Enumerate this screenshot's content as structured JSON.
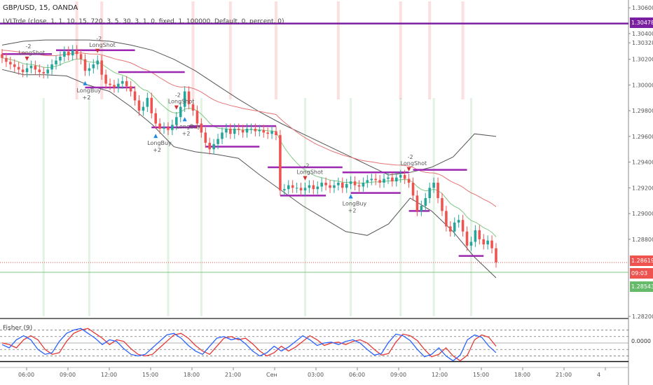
{
  "header": {
    "symbol_line": "GBP/USD, 15, OANDA",
    "study_line": "LVLTrde (close, 1, 1, 10, 15, 720, 3, 5, 30, 3, 1, 0, fixed, 1, 100000, Default, 0, percent, 0)",
    "fisher_label": "Fisher (9)"
  },
  "price_tags": {
    "top_level": "1.30478",
    "last_price": "1.28619",
    "countdown": "09:03",
    "support": "1.28543",
    "fisher_zero": "0.0000"
  },
  "colors": {
    "bull": "#26a69a",
    "bear": "#ef5350",
    "purple_level": "#9c27b0",
    "top_line": "#7b1fa2",
    "band_outer": "#555555",
    "ema_red": "#e57373",
    "ema_green": "#81c784",
    "fisher_blue": "#2962ff",
    "fisher_red": "#e53935",
    "support_tag": "#66bb6a",
    "price_tag": "#ef5350"
  },
  "chart_data": [
    {
      "type": "line",
      "title": "GBP/USD, 15, OANDA",
      "ylim": [
        1.282,
        1.3065
      ],
      "y_ticks": [
        "1.30600",
        "1.30400",
        "1.30328",
        "1.30200",
        "1.30000",
        "1.29800",
        "1.29600",
        "1.29400",
        "1.29200",
        "1.29000",
        "1.28800",
        "1.28200"
      ],
      "x_ticks": [
        "06:00",
        "09:00",
        "12:00",
        "15:00",
        "18:00",
        "21:00",
        "Сен",
        "03:00",
        "06:00",
        "09:00",
        "12:00",
        "15:00",
        "18:00",
        "21:00",
        "4"
      ],
      "series": [
        {
          "name": "close",
          "values": [
            1.3021,
            1.3018,
            1.3016,
            1.3014,
            1.3012,
            1.301,
            1.3013,
            1.3015,
            1.3012,
            1.301,
            1.3009,
            1.3012,
            1.3016,
            1.3019,
            1.3022,
            1.3026,
            1.3023,
            1.3027,
            1.3024,
            1.302,
            1.3011,
            1.3013,
            1.3016,
            1.3019,
            1.3008,
            1.3001,
            1.3,
            1.2998,
            1.3001,
            1.3003,
            1.2999,
            1.2995,
            1.2988,
            1.298,
            1.2983,
            1.299,
            1.2978,
            1.297,
            1.2966,
            1.2967,
            1.2965,
            1.2969,
            1.2975,
            1.2983,
            1.2995,
            1.2985,
            1.298,
            1.297,
            1.2963,
            1.2955,
            1.295,
            1.2954,
            1.2958,
            1.2963,
            1.2966,
            1.2962,
            1.2966,
            1.2965,
            1.2963,
            1.2966,
            1.2966,
            1.2964,
            1.2965,
            1.2963,
            1.2962,
            1.2964,
            1.2961,
            1.2918,
            1.2919,
            1.2922,
            1.292,
            1.292,
            1.2918,
            1.292,
            1.2922,
            1.2919,
            1.2921,
            1.2924,
            1.2922,
            1.292,
            1.2922,
            1.2924,
            1.292,
            1.2923,
            1.2925,
            1.2922,
            1.2921,
            1.2924,
            1.2926,
            1.2927,
            1.2926,
            1.2924,
            1.2927,
            1.2928,
            1.2925,
            1.2928,
            1.293,
            1.2927,
            1.2924,
            1.2914,
            1.2902,
            1.2906,
            1.2912,
            1.292,
            1.2924,
            1.2912,
            1.2902,
            1.289,
            1.2886,
            1.2893,
            1.2895,
            1.2886,
            1.2875,
            1.2878,
            1.2887,
            1.288,
            1.2876,
            1.2879,
            1.2873,
            1.2862
          ]
        },
        {
          "name": "upper band",
          "values": [
            1.3031,
            1.3034,
            1.3035,
            1.3035,
            1.3035,
            1.3034,
            1.3031,
            1.3027,
            1.302,
            1.3011,
            1.3,
            1.2989,
            1.2979,
            1.297,
            1.2962,
            1.2954,
            1.2946,
            1.2938,
            1.293,
            1.2932,
            1.2936,
            1.2944,
            1.2962,
            1.296
          ]
        },
        {
          "name": "lower band",
          "values": [
            1.3012,
            1.3008,
            1.3008,
            1.3007,
            1.3,
            1.2995,
            1.2983,
            1.2969,
            1.2952,
            1.2948,
            1.2946,
            1.2943,
            1.293,
            1.2918,
            1.2906,
            1.2896,
            1.2886,
            1.2883,
            1.2892,
            1.2912,
            1.2902,
            1.2886,
            1.2866,
            1.285
          ]
        }
      ],
      "annotations": {
        "short_signals": [
          {
            "label": "LongShot",
            "offset": "-2"
          },
          {
            "label": "LongShot",
            "offset": "-2"
          },
          {
            "label": "LongShot",
            "offset": "-2"
          },
          {
            "label": "LongShot",
            "offset": "-2"
          },
          {
            "label": "LongShot",
            "offset": "-2"
          }
        ],
        "buy_signals": [
          {
            "label": "LongBuy",
            "offset": "+2"
          },
          {
            "label": "LongBuy",
            "offset": "+2"
          },
          {
            "label": "LongBuy",
            "offset": "+2"
          },
          {
            "label": "LongBuy",
            "offset": "+2"
          }
        ]
      }
    },
    {
      "type": "line",
      "title": "Fisher (9)",
      "ylim": [
        -2.6,
        2.6
      ],
      "series": [
        {
          "name": "fisher",
          "values": [
            -0.2,
            -0.6,
            0.4,
            0.9,
            0.4,
            -0.8,
            -1.4,
            -1.2,
            0.2,
            1.2,
            1.6,
            1.8,
            1.2,
            0.6,
            -0.2,
            0.4,
            0.2,
            -0.7,
            -1.4,
            -1.6,
            -1.4,
            -0.6,
            0.2,
            1.0,
            1.2,
            0.6,
            -0.3,
            -1.0,
            -1.4,
            -0.4,
            0.6,
            0.8,
            0.4,
            0.6,
            -0.1,
            -1.0,
            -1.6,
            -1.2,
            -0.4,
            -1.0,
            -0.5,
            0.2,
            0.9,
            0.4,
            -0.3,
            0.0,
            0.1,
            -0.2,
            0.2,
            0.4,
            0.0,
            -0.8,
            -1.5,
            -1.3,
            0.1,
            1.1,
            0.9,
            0.3,
            -0.8,
            -1.7,
            -1.4,
            -0.6,
            -1.6,
            -2.2,
            -1.5,
            0.4,
            1.0,
            0.7,
            -0.4,
            -1.2
          ]
        },
        {
          "name": "trigger",
          "values": [
            0.0,
            -0.2,
            -0.6,
            0.4,
            0.9,
            0.4,
            -0.8,
            -1.4,
            -1.2,
            0.2,
            1.2,
            1.6,
            1.8,
            1.2,
            0.6,
            -0.2,
            0.4,
            0.2,
            -0.7,
            -1.4,
            -1.6,
            -1.4,
            -0.6,
            0.2,
            1.0,
            1.2,
            0.6,
            -0.3,
            -1.0,
            -1.4,
            -0.4,
            0.6,
            0.8,
            0.4,
            0.6,
            -0.1,
            -1.0,
            -1.6,
            -1.2,
            -0.4,
            -1.0,
            -0.5,
            0.2,
            0.9,
            0.4,
            -0.3,
            0.0,
            0.1,
            -0.2,
            0.2,
            0.4,
            0.0,
            -0.8,
            -1.5,
            -1.3,
            0.1,
            1.1,
            0.9,
            0.3,
            -0.8,
            -1.7,
            -1.4,
            -0.6,
            -1.6,
            -2.2,
            -1.5,
            0.4,
            1.0,
            0.7,
            -0.4
          ]
        }
      ]
    }
  ]
}
